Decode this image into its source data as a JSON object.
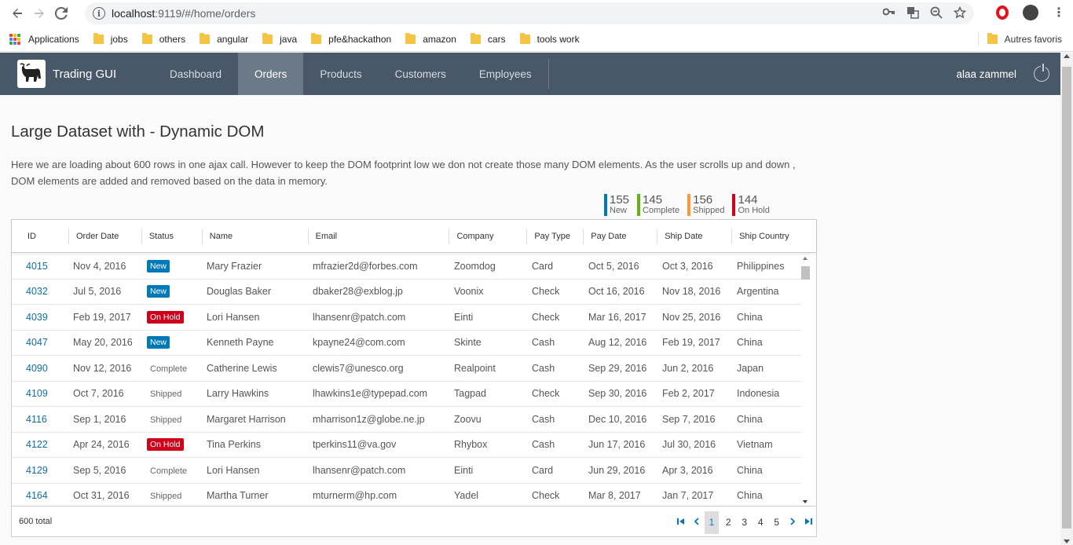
{
  "browser": {
    "url_host": "localhost",
    "url_rest": ":9119/#/home/orders",
    "bookmarks": [
      "Applications",
      "jobs",
      "others",
      "angular",
      "java",
      "pfe&hackathon",
      "amazon",
      "cars",
      "tools work"
    ],
    "other_bookmarks": "Autres favoris"
  },
  "header": {
    "brand": "Trading GUI",
    "tabs": [
      "Dashboard",
      "Orders",
      "Products",
      "Customers",
      "Employees"
    ],
    "active_tab": "Orders",
    "user": "alaa zammel"
  },
  "page": {
    "title": "Large Dataset with - Dynamic DOM",
    "description": "Here we are loading about 600 rows in one ajax call. However to keep the DOM footprint low we don not create those many DOM elements. As the user scrolls up and down , DOM elements are added and removed based on the data in memory."
  },
  "stats": [
    {
      "value": "155",
      "label": "New",
      "color": "#0079b8"
    },
    {
      "value": "145",
      "label": "Complete",
      "color": "#60b515"
    },
    {
      "value": "156",
      "label": "Shipped",
      "color": "#f89a2f"
    },
    {
      "value": "144",
      "label": "On Hold",
      "color": "#d0021b"
    }
  ],
  "grid": {
    "columns": [
      "ID",
      "Order Date",
      "Status",
      "Name",
      "Email",
      "Company",
      "Pay Type",
      "Pay Date",
      "Ship Date",
      "Ship Country"
    ],
    "rows": [
      [
        "4015",
        "Nov 4, 2016",
        "New",
        "Mary Frazier",
        "mfrazier2d@forbes.com",
        "Zoomdog",
        "Card",
        "Oct 5, 2016",
        "Oct 3, 2016",
        "Philippines"
      ],
      [
        "4032",
        "Jul 5, 2016",
        "New",
        "Douglas Baker",
        "dbaker28@exblog.jp",
        "Voonix",
        "Check",
        "Oct 16, 2016",
        "Nov 18, 2016",
        "Argentina"
      ],
      [
        "4039",
        "Feb 19, 2017",
        "On Hold",
        "Lori Hansen",
        "lhansenr@patch.com",
        "Einti",
        "Check",
        "Mar 16, 2017",
        "Nov 25, 2016",
        "China"
      ],
      [
        "4047",
        "May 20, 2016",
        "New",
        "Kenneth Payne",
        "kpayne24@com.com",
        "Skinte",
        "Cash",
        "Aug 12, 2016",
        "Feb 19, 2017",
        "China"
      ],
      [
        "4090",
        "Nov 12, 2016",
        "Complete",
        "Catherine Lewis",
        "clewis7@unesco.org",
        "Realpoint",
        "Cash",
        "Sep 29, 2016",
        "Jun 2, 2016",
        "Japan"
      ],
      [
        "4109",
        "Oct 7, 2016",
        "Shipped",
        "Larry Hawkins",
        "lhawkins1e@typepad.com",
        "Tagpad",
        "Check",
        "Sep 30, 2016",
        "Feb 2, 2017",
        "Indonesia"
      ],
      [
        "4116",
        "Sep 1, 2016",
        "Shipped",
        "Margaret Harrison",
        "mharrison1z@globe.ne.jp",
        "Zoovu",
        "Cash",
        "Dec 10, 2016",
        "Sep 7, 2016",
        "China"
      ],
      [
        "4122",
        "Apr 24, 2016",
        "On Hold",
        "Tina Perkins",
        "tperkins11@va.gov",
        "Rhybox",
        "Cash",
        "Jun 17, 2016",
        "Jul 30, 2016",
        "Vietnam"
      ],
      [
        "4129",
        "Sep 5, 2016",
        "Complete",
        "Lori Hansen",
        "lhansenr@patch.com",
        "Einti",
        "Card",
        "Jun 29, 2016",
        "Apr 3, 2016",
        "China"
      ],
      [
        "4164",
        "Oct 31, 2016",
        "Shipped",
        "Martha Turner",
        "mturnerm@hp.com",
        "Yadel",
        "Check",
        "Mar 8, 2017",
        "Jan 7, 2017",
        "China"
      ]
    ],
    "total": "600 total",
    "pages": [
      "1",
      "2",
      "3",
      "4",
      "5"
    ],
    "current_page": "1"
  }
}
